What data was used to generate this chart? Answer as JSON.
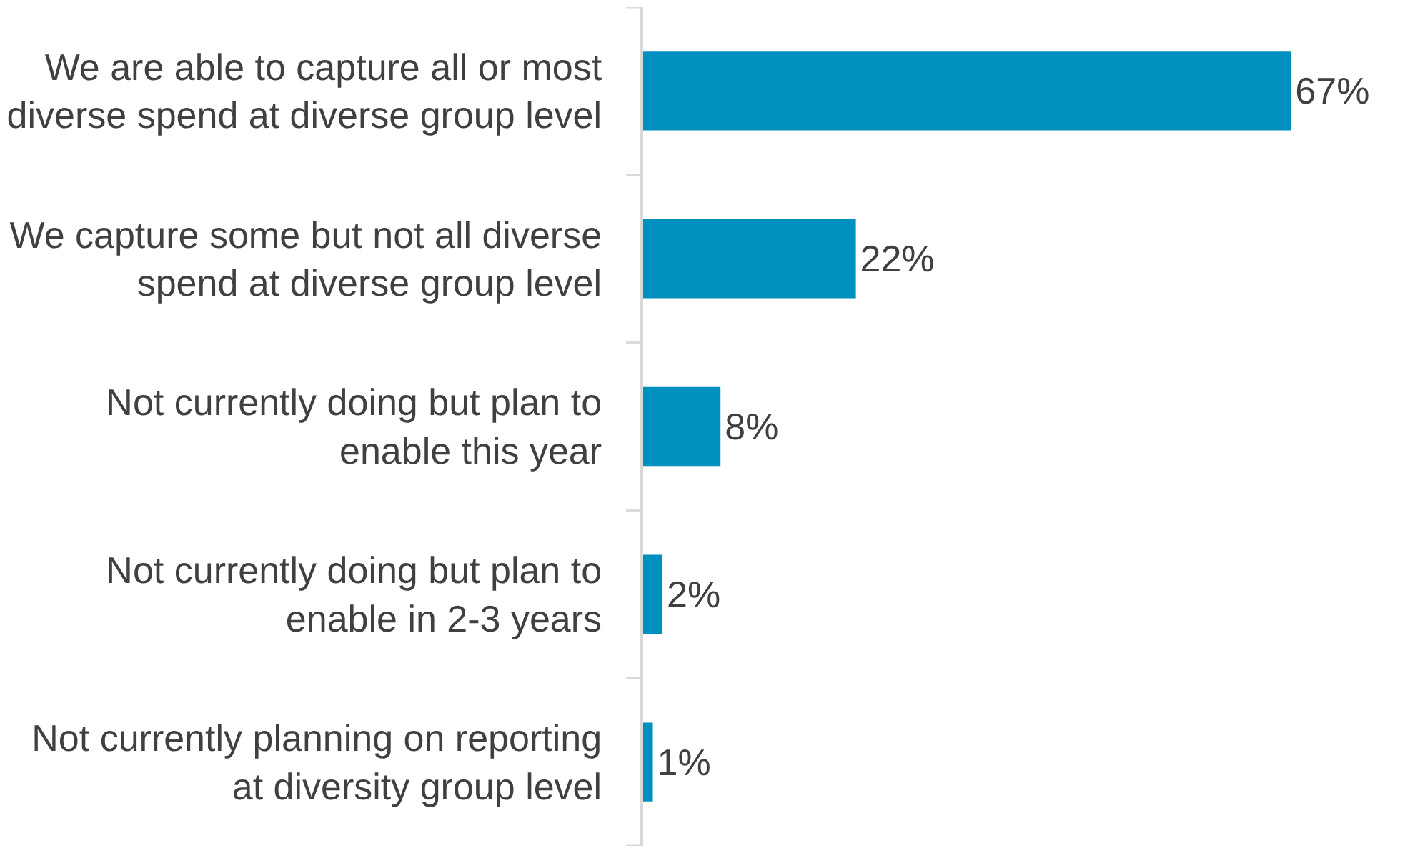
{
  "chart_data": {
    "type": "bar",
    "orientation": "horizontal",
    "categories": [
      "We are able to capture all or most\ndiverse spend at diverse group level",
      "We capture some but not all diverse\nspend at diverse group level",
      "Not currently doing but plan to\nenable this year",
      "Not currently doing but plan to\nenable in 2-3 years",
      "Not currently planning on reporting\nat diversity group level"
    ],
    "values": [
      67,
      22,
      8,
      2,
      1
    ],
    "value_labels": [
      "67%",
      "22%",
      "8%",
      "2%",
      "1%"
    ],
    "color": "#0090c0",
    "tick_labels": "y",
    "legend": false
  }
}
